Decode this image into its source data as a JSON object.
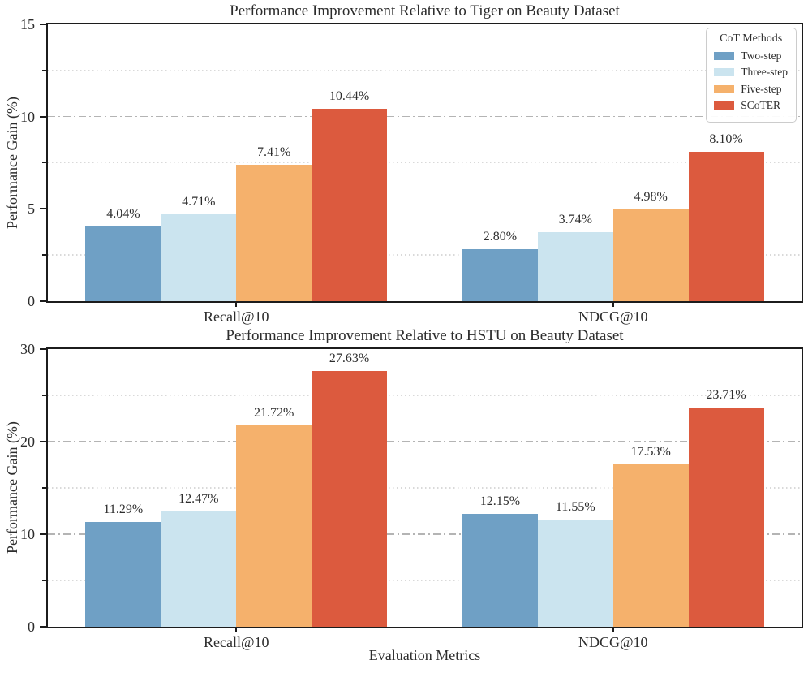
{
  "figure": {
    "background": "#ffffff",
    "text_color": "#2d2d2d",
    "spine_color": "#1c1c1c",
    "grid_major_color": "#b4b4b4",
    "grid_minor_color": "#d2d2d2"
  },
  "chart_data": [
    {
      "type": "bar",
      "title": "Performance Improvement Relative to Tiger on Beauty Dataset",
      "ylabel": "Performance Gain (%)",
      "xlabel": "",
      "categories": [
        "Recall@10",
        "NDCG@10"
      ],
      "series": [
        {
          "name": "Two-step",
          "color": "#6FA0C5",
          "values": [
            4.04,
            2.8
          ]
        },
        {
          "name": "Three-step",
          "color": "#CBE4EF",
          "values": [
            4.71,
            3.74
          ]
        },
        {
          "name": "Five-step",
          "color": "#F5B16C",
          "values": [
            7.41,
            4.98
          ]
        },
        {
          "name": "SCoTER",
          "color": "#DC5A3E",
          "values": [
            10.44,
            8.1
          ]
        }
      ],
      "bar_labels": [
        [
          "4.04%",
          "2.80%"
        ],
        [
          "4.71%",
          "3.74%"
        ],
        [
          "7.41%",
          "4.98%"
        ],
        [
          "10.44%",
          "8.10%"
        ]
      ],
      "ylim": [
        0,
        15
      ],
      "yticks": [
        0,
        5,
        10,
        15
      ],
      "minor_ticks": [
        2.5,
        7.5,
        12.5
      ],
      "grid": {
        "major_style": "dash-dot",
        "minor_style": "dotted",
        "axisbelow": true
      },
      "legend": {
        "title": "CoT Methods",
        "position": "upper right",
        "entries": [
          "Two-step",
          "Three-step",
          "Five-step",
          "SCoTER"
        ]
      }
    },
    {
      "type": "bar",
      "title": "Performance Improvement Relative to HSTU on Beauty Dataset",
      "ylabel": "Performance Gain (%)",
      "xlabel": "Evaluation Metrics",
      "categories": [
        "Recall@10",
        "NDCG@10"
      ],
      "series": [
        {
          "name": "Two-step",
          "color": "#6FA0C5",
          "values": [
            11.29,
            12.15
          ]
        },
        {
          "name": "Three-step",
          "color": "#CBE4EF",
          "values": [
            12.47,
            11.55
          ]
        },
        {
          "name": "Five-step",
          "color": "#F5B16C",
          "values": [
            21.72,
            17.53
          ]
        },
        {
          "name": "SCoTER",
          "color": "#DC5A3E",
          "values": [
            27.63,
            23.71
          ]
        }
      ],
      "bar_labels": [
        [
          "11.29%",
          "12.15%"
        ],
        [
          "12.47%",
          "11.55%"
        ],
        [
          "21.72%",
          "17.53%"
        ],
        [
          "27.63%",
          "23.71%"
        ]
      ],
      "ylim": [
        0,
        30
      ],
      "yticks": [
        0,
        10,
        20,
        30
      ],
      "minor_ticks": [
        5,
        15,
        25
      ],
      "grid": {
        "major_style": "dash-dot",
        "minor_style": "dotted",
        "axisbelow": true
      },
      "legend": null
    }
  ]
}
